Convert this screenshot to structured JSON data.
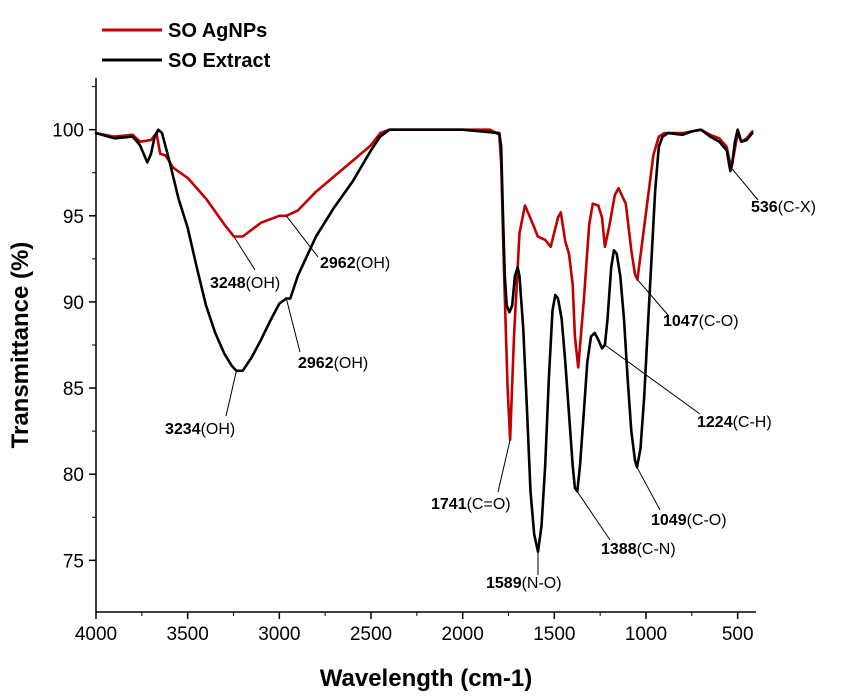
{
  "chart_data": {
    "type": "line",
    "xlabel": "Wavelength (cm-1)",
    "ylabel": "Transmittance (%)",
    "xlim": [
      4000,
      400
    ],
    "ylim": [
      72,
      103
    ],
    "x_ticks": [
      4000,
      3500,
      3000,
      2500,
      2000,
      1500,
      1000,
      500
    ],
    "y_ticks": [
      75,
      80,
      85,
      90,
      95,
      100
    ],
    "legend_position": "top-left",
    "grid": false,
    "series": [
      {
        "name": "SO AgNPs",
        "color": "#c00000",
        "points": [
          [
            4000,
            99.8
          ],
          [
            3900,
            99.6
          ],
          [
            3800,
            99.7
          ],
          [
            3760,
            99.3
          ],
          [
            3700,
            99.4
          ],
          [
            3670,
            99.8
          ],
          [
            3650,
            98.6
          ],
          [
            3620,
            98.5
          ],
          [
            3580,
            97.8
          ],
          [
            3500,
            97.2
          ],
          [
            3400,
            96.0
          ],
          [
            3300,
            94.5
          ],
          [
            3248,
            93.8
          ],
          [
            3200,
            93.8
          ],
          [
            3100,
            94.6
          ],
          [
            3000,
            95.0
          ],
          [
            2962,
            95.0
          ],
          [
            2900,
            95.3
          ],
          [
            2800,
            96.4
          ],
          [
            2700,
            97.3
          ],
          [
            2600,
            98.2
          ],
          [
            2500,
            99.1
          ],
          [
            2450,
            99.8
          ],
          [
            2400,
            100.0
          ],
          [
            2200,
            100.0
          ],
          [
            2000,
            100.0
          ],
          [
            1850,
            100.0
          ],
          [
            1800,
            99.7
          ],
          [
            1790,
            98.0
          ],
          [
            1775,
            92.0
          ],
          [
            1755,
            85.0
          ],
          [
            1741,
            82.0
          ],
          [
            1720,
            88.0
          ],
          [
            1690,
            94.0
          ],
          [
            1660,
            95.6
          ],
          [
            1620,
            94.6
          ],
          [
            1590,
            93.8
          ],
          [
            1550,
            93.6
          ],
          [
            1520,
            93.2
          ],
          [
            1480,
            94.9
          ],
          [
            1465,
            95.2
          ],
          [
            1440,
            93.5
          ],
          [
            1420,
            92.8
          ],
          [
            1400,
            91.0
          ],
          [
            1388,
            88.0
          ],
          [
            1370,
            86.2
          ],
          [
            1340,
            90.0
          ],
          [
            1310,
            94.5
          ],
          [
            1290,
            95.7
          ],
          [
            1260,
            95.6
          ],
          [
            1240,
            94.9
          ],
          [
            1224,
            93.2
          ],
          [
            1200,
            94.4
          ],
          [
            1170,
            96.2
          ],
          [
            1150,
            96.6
          ],
          [
            1110,
            95.7
          ],
          [
            1080,
            93.0
          ],
          [
            1060,
            91.6
          ],
          [
            1047,
            91.3
          ],
          [
            1020,
            93.5
          ],
          [
            990,
            96.0
          ],
          [
            960,
            98.5
          ],
          [
            930,
            99.6
          ],
          [
            900,
            99.8
          ],
          [
            800,
            99.8
          ],
          [
            700,
            100.0
          ],
          [
            650,
            99.7
          ],
          [
            600,
            99.5
          ],
          [
            560,
            99.0
          ],
          [
            536,
            97.8
          ],
          [
            520,
            98.6
          ],
          [
            500,
            99.8
          ],
          [
            480,
            99.3
          ],
          [
            450,
            99.5
          ],
          [
            420,
            99.9
          ]
        ]
      },
      {
        "name": "SO Extract",
        "color": "#000000",
        "points": [
          [
            4000,
            99.8
          ],
          [
            3900,
            99.5
          ],
          [
            3800,
            99.6
          ],
          [
            3760,
            99.1
          ],
          [
            3720,
            98.1
          ],
          [
            3700,
            98.6
          ],
          [
            3680,
            99.6
          ],
          [
            3660,
            100.0
          ],
          [
            3640,
            99.8
          ],
          [
            3600,
            98.2
          ],
          [
            3550,
            96.0
          ],
          [
            3500,
            94.3
          ],
          [
            3450,
            92.0
          ],
          [
            3400,
            89.8
          ],
          [
            3350,
            88.2
          ],
          [
            3300,
            87.0
          ],
          [
            3260,
            86.3
          ],
          [
            3234,
            86.0
          ],
          [
            3200,
            86.0
          ],
          [
            3150,
            86.8
          ],
          [
            3100,
            87.8
          ],
          [
            3050,
            88.9
          ],
          [
            3000,
            89.9
          ],
          [
            2962,
            90.2
          ],
          [
            2940,
            90.2
          ],
          [
            2900,
            91.5
          ],
          [
            2800,
            93.8
          ],
          [
            2700,
            95.5
          ],
          [
            2600,
            97.0
          ],
          [
            2500,
            98.8
          ],
          [
            2450,
            99.6
          ],
          [
            2400,
            100.0
          ],
          [
            2200,
            100.0
          ],
          [
            2000,
            100.0
          ],
          [
            1800,
            99.8
          ],
          [
            1790,
            99.0
          ],
          [
            1780,
            95.0
          ],
          [
            1770,
            91.5
          ],
          [
            1760,
            89.8
          ],
          [
            1745,
            89.4
          ],
          [
            1730,
            89.8
          ],
          [
            1715,
            91.5
          ],
          [
            1700,
            92.0
          ],
          [
            1690,
            91.5
          ],
          [
            1670,
            88.5
          ],
          [
            1650,
            84.0
          ],
          [
            1630,
            79.0
          ],
          [
            1610,
            76.5
          ],
          [
            1589,
            75.5
          ],
          [
            1570,
            77.0
          ],
          [
            1550,
            80.5
          ],
          [
            1530,
            85.5
          ],
          [
            1510,
            89.5
          ],
          [
            1495,
            90.4
          ],
          [
            1480,
            90.2
          ],
          [
            1460,
            89.0
          ],
          [
            1440,
            86.5
          ],
          [
            1420,
            83.5
          ],
          [
            1400,
            80.5
          ],
          [
            1388,
            79.2
          ],
          [
            1375,
            79.0
          ],
          [
            1360,
            80.5
          ],
          [
            1340,
            83.5
          ],
          [
            1320,
            86.5
          ],
          [
            1300,
            88.0
          ],
          [
            1280,
            88.2
          ],
          [
            1260,
            87.8
          ],
          [
            1240,
            87.3
          ],
          [
            1224,
            87.5
          ],
          [
            1210,
            89.0
          ],
          [
            1190,
            92.0
          ],
          [
            1175,
            93.0
          ],
          [
            1160,
            92.8
          ],
          [
            1140,
            91.5
          ],
          [
            1120,
            89.0
          ],
          [
            1100,
            85.5
          ],
          [
            1080,
            82.5
          ],
          [
            1060,
            80.8
          ],
          [
            1049,
            80.4
          ],
          [
            1030,
            81.5
          ],
          [
            1010,
            84.5
          ],
          [
            990,
            88.5
          ],
          [
            970,
            92.5
          ],
          [
            950,
            96.5
          ],
          [
            930,
            99.0
          ],
          [
            910,
            99.6
          ],
          [
            880,
            99.8
          ],
          [
            800,
            99.7
          ],
          [
            750,
            99.9
          ],
          [
            700,
            100.0
          ],
          [
            650,
            99.6
          ],
          [
            600,
            99.3
          ],
          [
            560,
            98.8
          ],
          [
            540,
            97.6
          ],
          [
            530,
            98.0
          ],
          [
            515,
            99.3
          ],
          [
            500,
            100.0
          ],
          [
            480,
            99.3
          ],
          [
            450,
            99.4
          ],
          [
            420,
            99.8
          ]
        ]
      }
    ],
    "annotations": [
      {
        "num": "3248",
        "group": "(OH)",
        "x": 3248,
        "y": 93.8,
        "series": 0
      },
      {
        "num": "2962",
        "group": "(OH)",
        "x": 2962,
        "y": 95.0,
        "series": 0
      },
      {
        "num": "2962",
        "group": "(OH)",
        "x": 2962,
        "y": 90.2,
        "series": 1
      },
      {
        "num": "3234",
        "group": "(OH)",
        "x": 3234,
        "y": 86.0,
        "series": 1
      },
      {
        "num": "1741",
        "group": "(C=O)",
        "x": 1741,
        "y": 82.0,
        "series": 0
      },
      {
        "num": "1589",
        "group": "(N-O)",
        "x": 1589,
        "y": 75.5,
        "series": 1
      },
      {
        "num": "1388",
        "group": "(C-N)",
        "x": 1388,
        "y": 79.2,
        "series": 1
      },
      {
        "num": "1049",
        "group": "(C-O)",
        "x": 1049,
        "y": 80.4,
        "series": 1
      },
      {
        "num": "1224",
        "group": "(C-H)",
        "x": 1224,
        "y": 87.5,
        "series": 1
      },
      {
        "num": "1047",
        "group": "(C-O)",
        "x": 1047,
        "y": 91.3,
        "series": 0
      },
      {
        "num": "536",
        "group": "(C-X)",
        "x": 536,
        "y": 97.8,
        "series": 0
      }
    ]
  }
}
